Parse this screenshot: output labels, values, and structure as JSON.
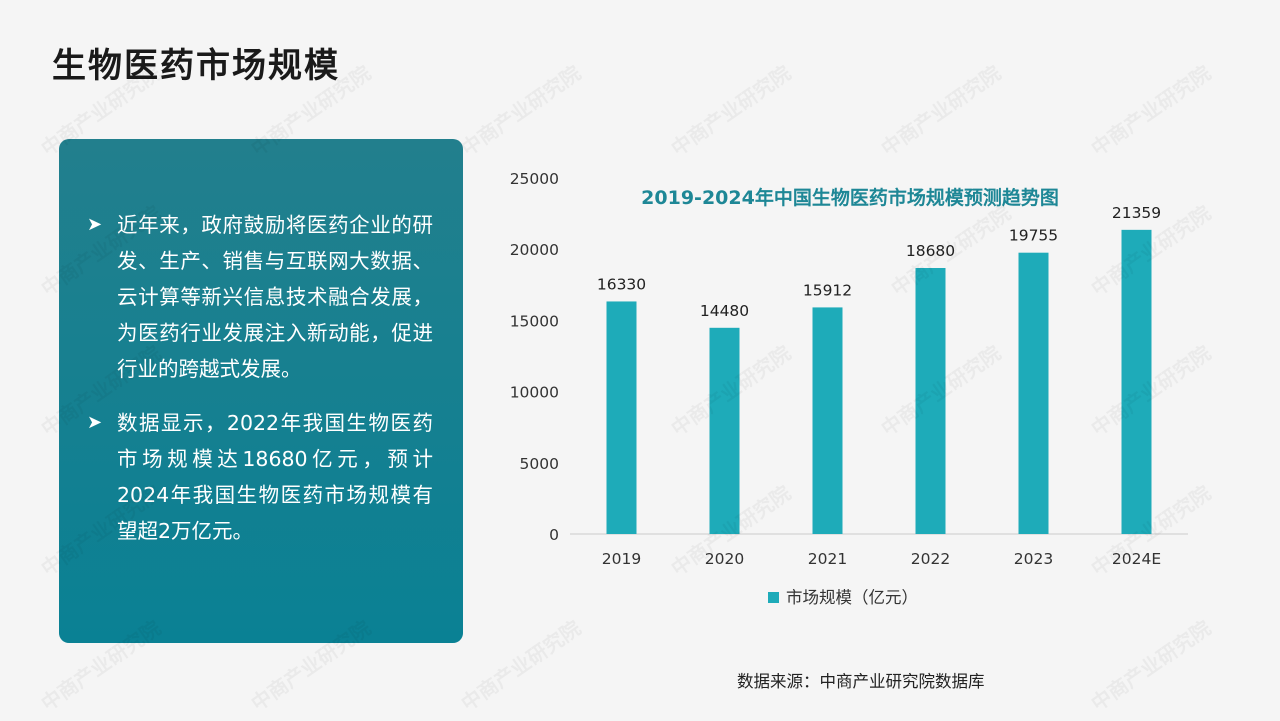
{
  "page": {
    "title": "生物医药市场规模",
    "source": "数据来源：中商产业研究院数据库",
    "watermark": "中商产业研究院"
  },
  "panel": {
    "bullets": [
      "近年来，政府鼓励将医药企业的研发、生产、销售与互联网大数据、云计算等新兴信息技术融合发展，为医药行业发展注入新动能，促进行业的跨越式发展。",
      "数据显示，2022年我国生物医药市场规模达18680亿元，预计2024年我国生物医药市场规模有望超2万亿元。"
    ]
  },
  "colors": {
    "bar": "#1eabb9",
    "title": "#1e8796",
    "panel": "#0e8394"
  },
  "chart_data": {
    "type": "bar",
    "title": "2019-2024年中国生物医药市场规模预测趋势图",
    "categories": [
      "2019",
      "2020",
      "2021",
      "2022",
      "2023",
      "2024E"
    ],
    "series": [
      {
        "name": "市场规模（亿元）",
        "values": [
          16330,
          14480,
          15912,
          18680,
          19755,
          21359
        ]
      }
    ],
    "ylim": [
      0,
      25000
    ],
    "yticks": [
      0,
      5000,
      10000,
      15000,
      20000,
      25000
    ],
    "grid": false,
    "legend": "bottom",
    "data_labels": true
  }
}
